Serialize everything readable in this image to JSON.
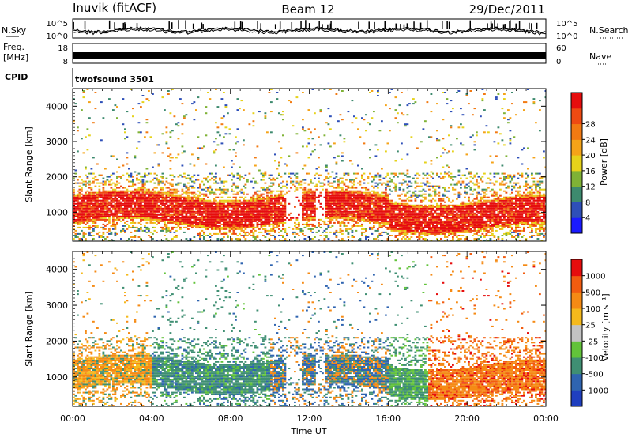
{
  "header": {
    "station": "Inuvik (fitACF)",
    "beam": "Beam 12",
    "date": "29/Dec/2011"
  },
  "noise_panel": {
    "left_label": "N.Sky",
    "right_label": "N.Search",
    "left_ticks": [
      "10^5",
      "10^0"
    ],
    "right_ticks": [
      "10^5",
      "10^0"
    ]
  },
  "freq_panel": {
    "left_label_line1": "Freq.",
    "left_label_line2": "[MHz]",
    "right_label": "Nave",
    "left_ticks": [
      "18",
      "8"
    ],
    "right_ticks": [
      "60",
      "0"
    ]
  },
  "cpid": {
    "label": "CPID",
    "value": "twofsound 3501"
  },
  "x_axis": {
    "label": "Time UT",
    "ticks": [
      "00:00",
      "04:00",
      "08:00",
      "12:00",
      "16:00",
      "20:00",
      "00:00"
    ]
  },
  "y_axis": {
    "label": "Slant Range [km]",
    "ticks": [
      "1000",
      "2000",
      "3000",
      "4000"
    ]
  },
  "chart_data": [
    {
      "type": "heatmap",
      "quantity": "Power",
      "colorbar_label": "Power [dB]",
      "colorbar_ticks": [
        "4",
        "8",
        "12",
        "16",
        "20",
        "24",
        "28"
      ],
      "colorbar_colors": [
        "#1a1aff",
        "#2e4fb8",
        "#3d8a6e",
        "#7fb236",
        "#e6d21a",
        "#f5a318",
        "#f27a12",
        "#ee4a12",
        "#e60d0d"
      ],
      "x_range": [
        "00:00",
        "24:00"
      ],
      "y_range": [
        180,
        4500
      ],
      "y_ticks": [
        1000,
        2000,
        3000,
        4000
      ]
    },
    {
      "type": "heatmap",
      "quantity": "Velocity",
      "colorbar_label": "Velocity [m s⁻¹]",
      "colorbar_ticks": [
        "1000",
        "500",
        "100",
        "25",
        "-25",
        "-100",
        "-500",
        "-1000"
      ],
      "colorbar_colors": [
        "#1f3fbf",
        "#2f64b0",
        "#3f8f73",
        "#62c33a",
        "#c3c3c3",
        "#f5b91c",
        "#f58a14",
        "#f25c10",
        "#e60d0d"
      ],
      "x_range": [
        "00:00",
        "24:00"
      ],
      "y_range": [
        180,
        4500
      ],
      "y_ticks": [
        1000,
        2000,
        3000,
        4000
      ]
    }
  ]
}
